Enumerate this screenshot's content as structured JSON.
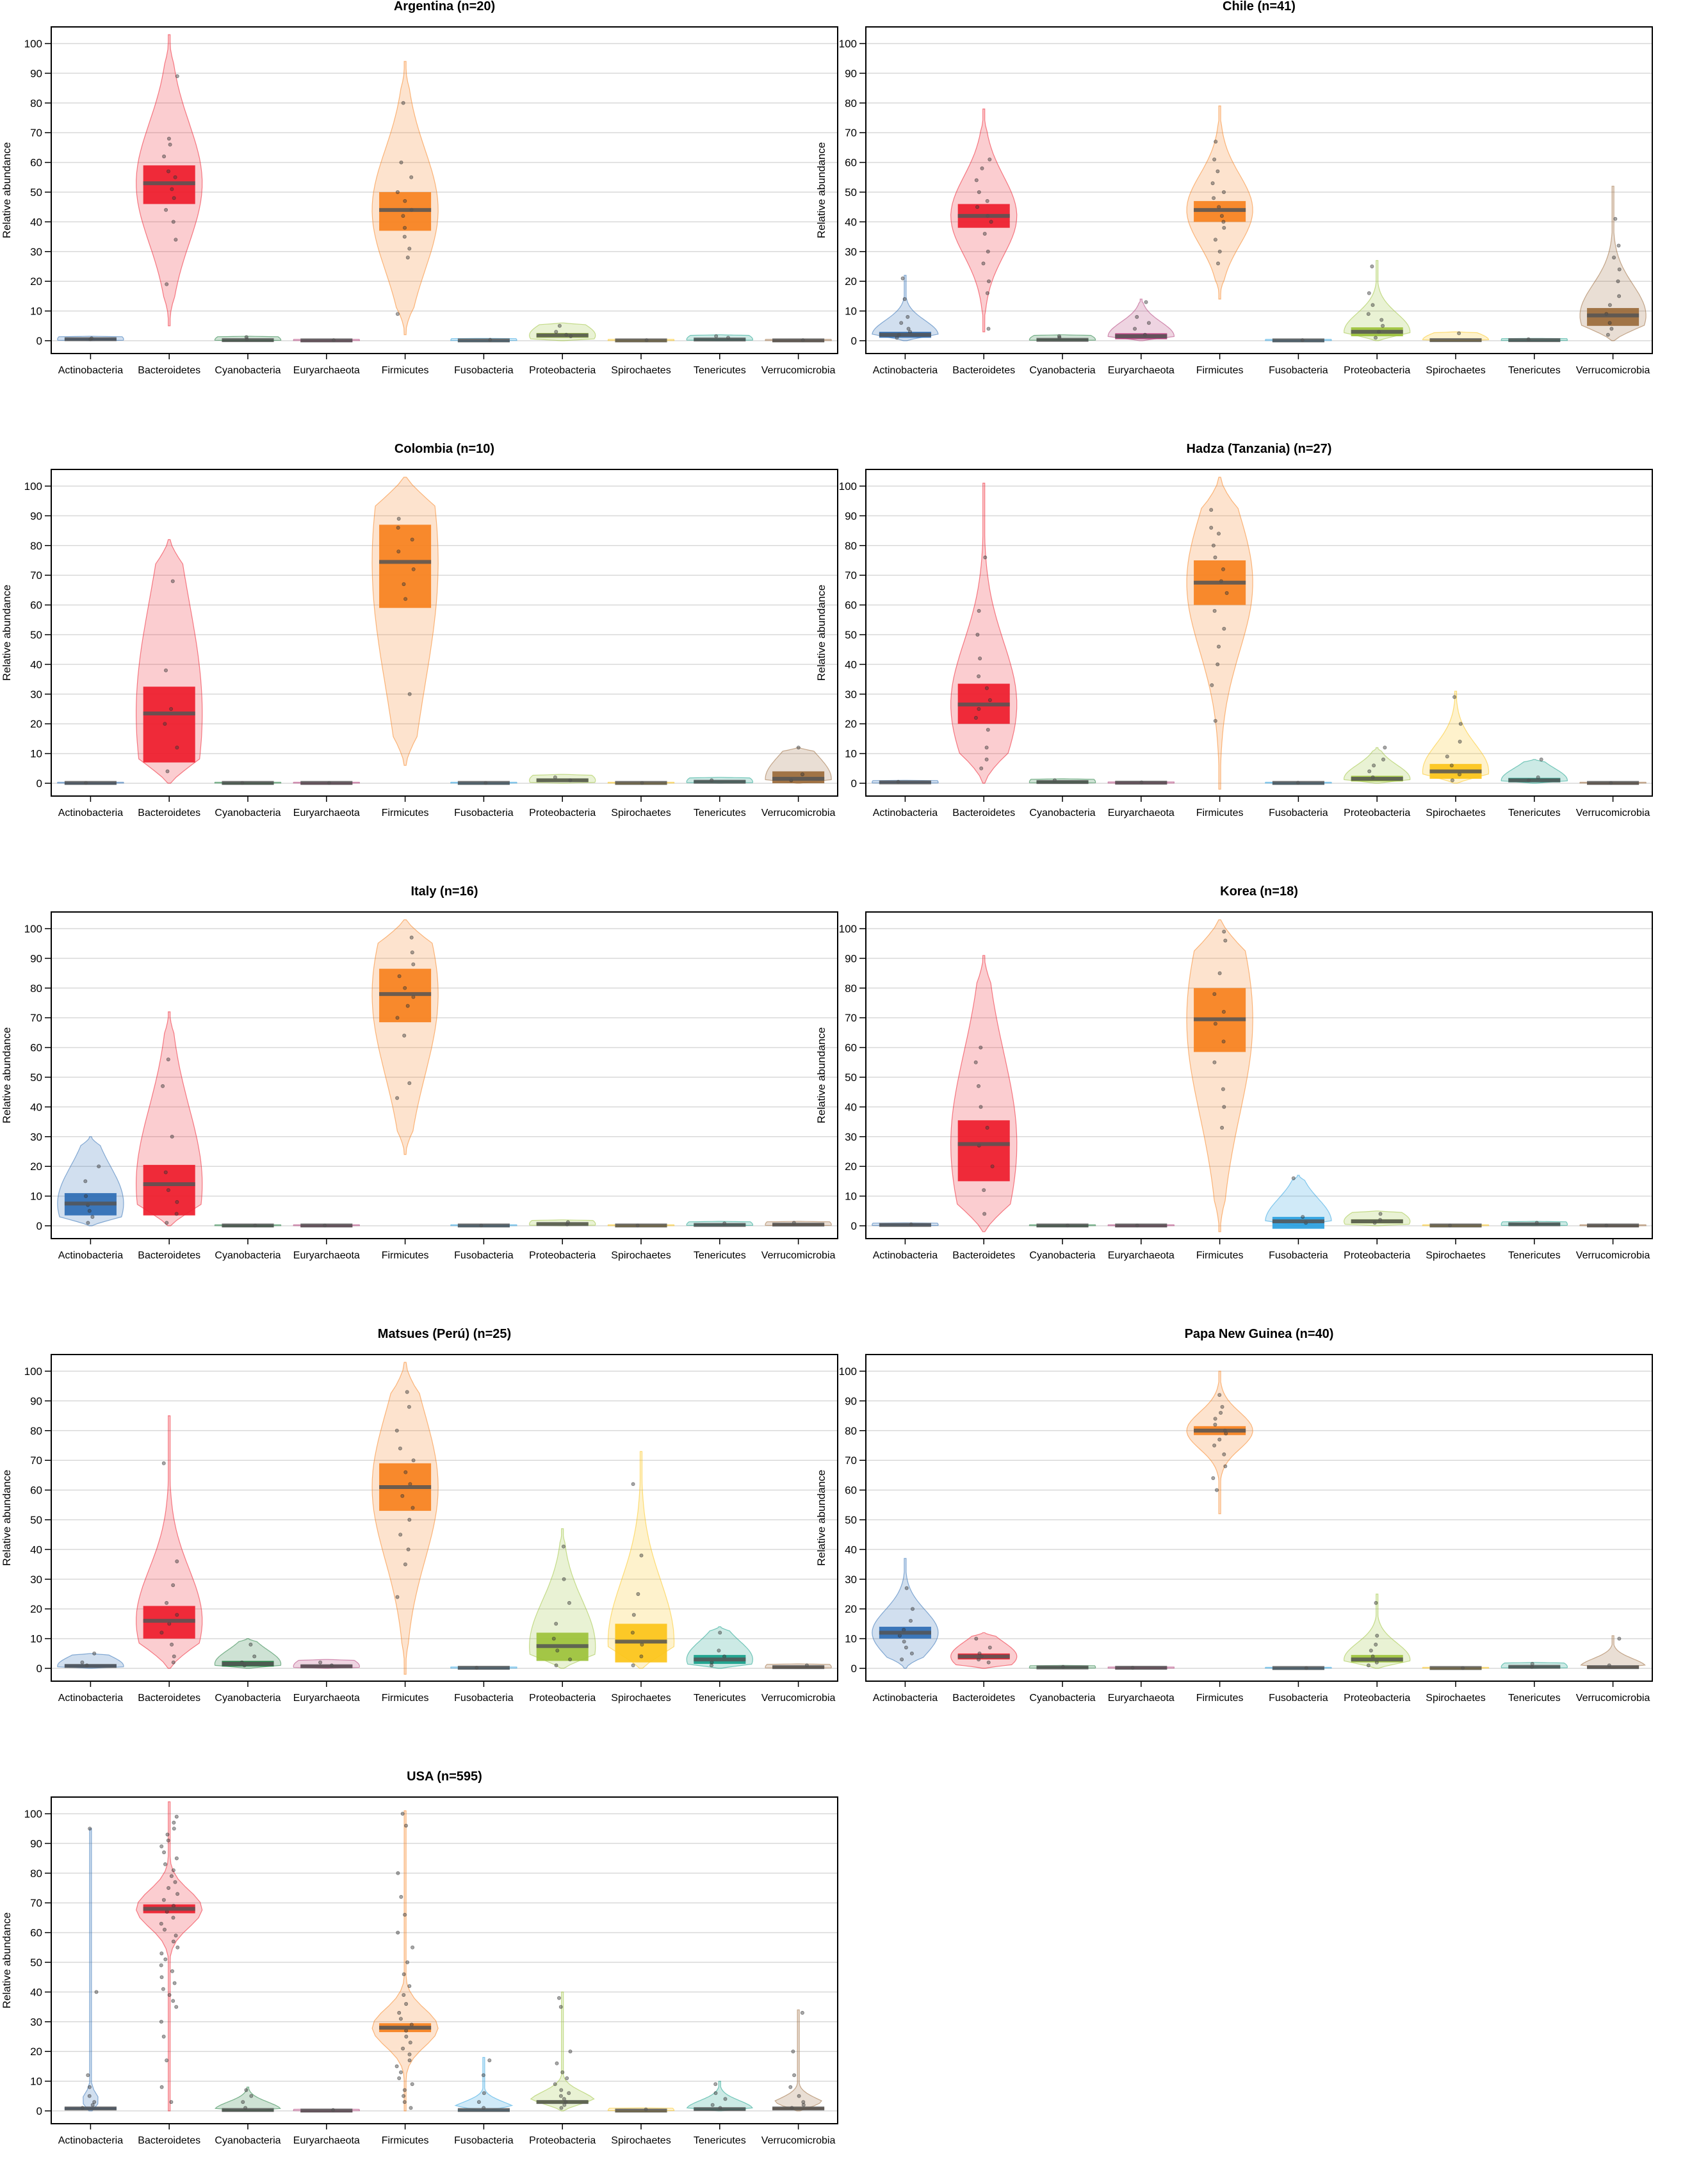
{
  "figure": {
    "ylabel": "Relative abundance",
    "phyla": [
      "Actinobacteria",
      "Bacteroidetes",
      "Cyanobacteria",
      "Euryarchaeota",
      "Firmicutes",
      "Fusobacteria",
      "Proteobacteria",
      "Spirochaetes",
      "Tenericutes",
      "Verrucomicrobia"
    ],
    "colors": {
      "Actinobacteria": "#2e6db4",
      "Bacteroidetes": "#ee1c2b",
      "Cyanobacteria": "#1e7b3c",
      "Euryarchaeota": "#b03a78",
      "Firmicutes": "#f7811e",
      "Fusobacteria": "#2aa0e0",
      "Proteobacteria": "#9cc23a",
      "Spirochaetes": "#fcc419",
      "Tenericutes": "#16a08a",
      "Verrucomicrobia": "#9a6a3a"
    },
    "ylim": [
      0,
      100
    ],
    "yticks": [
      0,
      10,
      20,
      30,
      40,
      50,
      60,
      70,
      80,
      90,
      100
    ]
  },
  "chart_data": [
    {
      "type": "pirate",
      "title": "Argentina (n=20)",
      "ylabel": "Relative abundance",
      "ylim": [
        0,
        100
      ],
      "categories": [
        "Actinobacteria",
        "Bacteroidetes",
        "Cyanobacteria",
        "Euryarchaeota",
        "Firmicutes",
        "Fusobacteria",
        "Proteobacteria",
        "Spirochaetes",
        "Tenericutes",
        "Verrucomicrobia"
      ],
      "means": [
        0.5,
        53,
        0.2,
        0.1,
        44,
        0.1,
        1.8,
        0.1,
        0.4,
        0.1
      ],
      "box_low": [
        0.2,
        46,
        0.1,
        0.05,
        37,
        0.05,
        1.0,
        0.05,
        0.1,
        0.05
      ],
      "box_high": [
        0.8,
        59,
        0.4,
        0.2,
        50,
        0.2,
        2.6,
        0.2,
        0.7,
        0.2
      ],
      "violin_min": [
        0,
        5,
        0,
        0,
        2,
        0,
        0,
        0,
        0,
        0
      ],
      "violin_max": [
        1.5,
        103,
        1.5,
        0.5,
        94,
        0.8,
        6,
        0.5,
        2,
        0.5
      ],
      "points": [
        [
          0.5,
          0.8
        ],
        [
          89,
          68,
          66,
          62,
          57,
          55,
          51,
          48,
          44,
          40,
          34,
          19
        ],
        [
          0.5,
          1.2
        ],
        [
          0.2
        ],
        [
          80,
          60,
          55,
          50,
          47,
          44,
          42,
          38,
          35,
          31,
          28,
          9
        ],
        [
          0.3
        ],
        [
          5,
          3,
          2,
          1.5
        ],
        [
          0.2
        ],
        [
          1.5,
          1
        ],
        [
          0.2
        ]
      ]
    },
    {
      "type": "pirate",
      "title": "Chile (n=41)",
      "ylabel": "Relative abundance",
      "ylim": [
        0,
        100
      ],
      "categories": [
        "Actinobacteria",
        "Bacteroidetes",
        "Cyanobacteria",
        "Euryarchaeota",
        "Firmicutes",
        "Fusobacteria",
        "Proteobacteria",
        "Spirochaetes",
        "Tenericutes",
        "Verrucomicrobia"
      ],
      "means": [
        2,
        42,
        0.3,
        1.5,
        44,
        0.1,
        3,
        0.2,
        0.2,
        8.5
      ],
      "box_low": [
        1,
        38,
        0.1,
        0.5,
        40,
        0.05,
        1.5,
        0.05,
        0.05,
        5
      ],
      "box_high": [
        3,
        46,
        0.6,
        2.5,
        47,
        0.2,
        4.5,
        0.4,
        0.4,
        11
      ],
      "violin_min": [
        0,
        3,
        0,
        0,
        14,
        0,
        0,
        0,
        0,
        0
      ],
      "violin_max": [
        22,
        78,
        2,
        14,
        79,
        0.5,
        27,
        3,
        0.8,
        52
      ],
      "points": [
        [
          21,
          14,
          8,
          6,
          4,
          3,
          2,
          1
        ],
        [
          61,
          58,
          54,
          50,
          47,
          45,
          42,
          40,
          36,
          30,
          26,
          20,
          16,
          4
        ],
        [
          1.5,
          1
        ],
        [
          13,
          8,
          6,
          4,
          2
        ],
        [
          67,
          61,
          57,
          53,
          50,
          48,
          45,
          42,
          40,
          38,
          34,
          30,
          26
        ],
        [
          0.2
        ],
        [
          25,
          16,
          12,
          9,
          7,
          5,
          3,
          1
        ],
        [
          2.5
        ],
        [
          0.5
        ],
        [
          41,
          32,
          28,
          24,
          20,
          15,
          12,
          9,
          6,
          4,
          2
        ]
      ]
    },
    {
      "type": "pirate",
      "title": "Colombia (n=10)",
      "ylabel": "Relative abundance",
      "ylim": [
        0,
        100
      ],
      "categories": [
        "Actinobacteria",
        "Bacteroidetes",
        "Cyanobacteria",
        "Euryarchaeota",
        "Firmicutes",
        "Fusobacteria",
        "Proteobacteria",
        "Spirochaetes",
        "Tenericutes",
        "Verrucomicrobia"
      ],
      "means": [
        0.1,
        23.5,
        0.1,
        0.1,
        74.5,
        0.1,
        1,
        0.1,
        0.5,
        1.5
      ],
      "box_low": [
        0.05,
        7,
        0.05,
        0.05,
        59,
        0.05,
        0.5,
        0.05,
        0.2,
        0
      ],
      "box_high": [
        0.2,
        32.5,
        0.2,
        0.2,
        87,
        0.2,
        1.6,
        0.2,
        0.9,
        4
      ],
      "violin_min": [
        0,
        0,
        0,
        0,
        6,
        0,
        0,
        0,
        0,
        0
      ],
      "violin_max": [
        0.4,
        82,
        0.4,
        0.4,
        103,
        0.4,
        3,
        0.4,
        2,
        12
      ],
      "points": [
        [
          0.1
        ],
        [
          68,
          38,
          25,
          20,
          12,
          4
        ],
        [
          0.1
        ],
        [
          0.1
        ],
        [
          89,
          86,
          82,
          78,
          72,
          67,
          62,
          30
        ],
        [
          0.1
        ],
        [
          2,
          1
        ],
        [
          0.1
        ],
        [
          1
        ],
        [
          12,
          3,
          1
        ]
      ]
    },
    {
      "type": "pirate",
      "title": "Hadza (Tanzania) (n=27)",
      "ylabel": "Relative abundance",
      "ylim": [
        0,
        100
      ],
      "categories": [
        "Actinobacteria",
        "Bacteroidetes",
        "Cyanobacteria",
        "Euryarchaeota",
        "Firmicutes",
        "Fusobacteria",
        "Proteobacteria",
        "Spirochaetes",
        "Tenericutes",
        "Verrucomicrobia"
      ],
      "means": [
        0.3,
        26.5,
        0.4,
        0.2,
        67.5,
        0.1,
        1.5,
        4,
        1,
        0.1
      ],
      "box_low": [
        0.1,
        20,
        0.1,
        0.05,
        60,
        0.05,
        0.6,
        1.5,
        0.3,
        0.05
      ],
      "box_high": [
        0.6,
        33.5,
        0.8,
        0.4,
        75,
        0.2,
        2.5,
        6.5,
        1.8,
        0.2
      ],
      "violin_min": [
        0,
        0,
        0,
        0,
        -2,
        0,
        0,
        0,
        0,
        0
      ],
      "violin_max": [
        1,
        101,
        1.5,
        0.5,
        103,
        0.4,
        12,
        31,
        8,
        0.4
      ],
      "points": [
        [
          0.5
        ],
        [
          76,
          58,
          50,
          42,
          36,
          32,
          28,
          25,
          22,
          18,
          12,
          8,
          5
        ],
        [
          1
        ],
        [
          0.3
        ],
        [
          92,
          86,
          84,
          80,
          76,
          72,
          68,
          64,
          58,
          52,
          46,
          40,
          33,
          21
        ],
        [
          0.2
        ],
        [
          12,
          8,
          6,
          4,
          2
        ],
        [
          29,
          20,
          14,
          9,
          6,
          3,
          1
        ],
        [
          8,
          2,
          1
        ],
        [
          0.1
        ]
      ]
    },
    {
      "type": "pirate",
      "title": "Italy (n=16)",
      "ylabel": "Relative abundance",
      "ylim": [
        0,
        100
      ],
      "categories": [
        "Actinobacteria",
        "Bacteroidetes",
        "Cyanobacteria",
        "Euryarchaeota",
        "Firmicutes",
        "Fusobacteria",
        "Proteobacteria",
        "Spirochaetes",
        "Tenericutes",
        "Verrucomicrobia"
      ],
      "means": [
        7.5,
        14,
        0.1,
        0.1,
        78,
        0.1,
        0.6,
        0.1,
        0.3,
        0.4
      ],
      "box_low": [
        3.5,
        3.5,
        0.05,
        0.05,
        68.5,
        0.05,
        0.3,
        0.05,
        0.1,
        0.1
      ],
      "box_high": [
        11,
        20.5,
        0.2,
        0.2,
        86.5,
        0.2,
        1,
        0.2,
        0.6,
        0.7
      ],
      "violin_min": [
        0,
        0,
        0,
        0,
        24,
        0,
        0,
        0,
        0,
        0
      ],
      "violin_max": [
        30,
        72,
        0.4,
        0.4,
        103,
        0.4,
        2,
        0.4,
        1.5,
        1.5
      ],
      "points": [
        [
          20,
          15,
          10,
          7,
          5,
          3,
          1
        ],
        [
          56,
          47,
          30,
          18,
          12,
          8,
          4,
          1
        ],
        [
          0.1
        ],
        [
          0.1
        ],
        [
          97,
          92,
          88,
          84,
          80,
          77,
          74,
          70,
          64,
          48,
          43
        ],
        [
          0.1
        ],
        [
          1.2,
          0.5
        ],
        [
          0.1
        ],
        [
          0.8
        ],
        [
          1
        ]
      ]
    },
    {
      "type": "pirate",
      "title": "Korea (n=18)",
      "ylabel": "Relative abundance",
      "ylim": [
        0,
        100
      ],
      "categories": [
        "Actinobacteria",
        "Bacteroidetes",
        "Cyanobacteria",
        "Euryarchaeota",
        "Firmicutes",
        "Fusobacteria",
        "Proteobacteria",
        "Spirochaetes",
        "Tenericutes",
        "Verrucomicrobia"
      ],
      "means": [
        0.3,
        27.5,
        0.1,
        0.1,
        69.5,
        1.5,
        1.5,
        0.1,
        0.5,
        0.1
      ],
      "box_low": [
        0.1,
        15,
        0.05,
        0.05,
        58.5,
        -1,
        0.8,
        0.05,
        0.2,
        0.05
      ],
      "box_high": [
        0.6,
        35.5,
        0.2,
        0.2,
        80,
        3,
        2.2,
        0.2,
        0.9,
        0.2
      ],
      "violin_min": [
        0,
        -2,
        0,
        0,
        -2,
        0,
        0,
        0,
        0,
        0
      ],
      "violin_max": [
        1,
        91,
        0.4,
        0.4,
        103,
        17,
        5,
        0.4,
        1.5,
        0.4
      ],
      "points": [
        [
          0.5
        ],
        [
          60,
          55,
          47,
          40,
          33,
          27,
          20,
          12,
          4
        ],
        [
          0.1
        ],
        [
          0.1
        ],
        [
          99,
          96,
          85,
          78,
          72,
          68,
          62,
          55,
          46,
          40,
          33
        ],
        [
          16,
          3,
          1
        ],
        [
          4,
          2,
          1
        ],
        [
          0.1
        ],
        [
          1
        ],
        [
          0.1
        ]
      ]
    },
    {
      "type": "pirate",
      "title": "Matsues (Perú) (n=25)",
      "ylabel": "Relative abundance",
      "ylim": [
        0,
        100
      ],
      "categories": [
        "Actinobacteria",
        "Bacteroidetes",
        "Cyanobacteria",
        "Euryarchaeota",
        "Firmicutes",
        "Fusobacteria",
        "Proteobacteria",
        "Spirochaetes",
        "Tenericutes",
        "Verrucomicrobia"
      ],
      "means": [
        0.8,
        16,
        1.5,
        0.7,
        61,
        0.2,
        7.5,
        9,
        3,
        0.4
      ],
      "box_low": [
        0.3,
        10,
        0.6,
        0.2,
        53,
        0.05,
        2.5,
        2,
        1.5,
        0.1
      ],
      "box_high": [
        1.3,
        21,
        2.5,
        1.2,
        69,
        0.3,
        12,
        15,
        4.5,
        0.7
      ],
      "violin_min": [
        0,
        0,
        0,
        0,
        -2,
        0,
        0,
        0,
        0,
        0
      ],
      "violin_max": [
        5,
        85,
        10,
        3,
        103,
        0.5,
        47,
        73,
        14,
        1.5
      ],
      "points": [
        [
          5,
          2,
          1
        ],
        [
          69,
          36,
          28,
          22,
          18,
          15,
          12,
          8,
          4,
          2
        ],
        [
          8,
          4,
          2,
          1
        ],
        [
          2,
          1
        ],
        [
          93,
          88,
          80,
          74,
          70,
          66,
          62,
          58,
          54,
          50,
          45,
          40,
          35,
          24
        ],
        [
          0.2
        ],
        [
          41,
          30,
          22,
          15,
          10,
          6,
          3,
          1
        ],
        [
          62,
          38,
          25,
          18,
          12,
          8,
          4,
          1
        ],
        [
          12,
          6,
          4,
          2,
          1
        ],
        [
          1
        ]
      ]
    },
    {
      "type": "pirate",
      "title": "Papa New Guinea (n=40)",
      "ylabel": "Relative abundance",
      "ylim": [
        0,
        100
      ],
      "categories": [
        "Actinobacteria",
        "Bacteroidetes",
        "Cyanobacteria",
        "Euryarchaeota",
        "Firmicutes",
        "Fusobacteria",
        "Proteobacteria",
        "Spirochaetes",
        "Tenericutes",
        "Verrucomicrobia"
      ],
      "means": [
        12,
        4,
        0.3,
        0.2,
        80,
        0.1,
        3,
        0.1,
        0.5,
        0.4
      ],
      "box_low": [
        10,
        3,
        0.1,
        0.05,
        78.5,
        0.05,
        2,
        0.05,
        0.2,
        0.1
      ],
      "box_high": [
        14,
        5,
        0.6,
        0.4,
        81.5,
        0.2,
        4.5,
        0.2,
        0.8,
        0.7
      ],
      "violin_min": [
        0,
        0,
        0,
        0,
        52,
        0,
        0,
        0,
        0,
        0
      ],
      "violin_max": [
        37,
        12,
        1,
        0.5,
        100,
        0.4,
        25,
        0.4,
        2,
        11
      ],
      "points": [
        [
          27,
          20,
          16,
          13,
          11,
          9,
          7,
          5,
          3
        ],
        [
          10,
          7,
          5,
          4,
          3,
          2
        ],
        [
          0.5
        ],
        [
          0.2
        ],
        [
          92,
          88,
          86,
          84,
          82,
          80,
          79,
          77,
          75,
          72,
          68,
          64,
          60
        ],
        [
          0.1
        ],
        [
          22,
          11,
          8,
          6,
          4,
          2,
          1
        ],
        [
          0.1
        ],
        [
          1.5,
          0.5
        ],
        [
          10,
          1
        ]
      ]
    },
    {
      "type": "pirate",
      "title": "USA (n=595)",
      "ylabel": "Relative abundance",
      "ylim": [
        0,
        100
      ],
      "categories": [
        "Actinobacteria",
        "Bacteroidetes",
        "Cyanobacteria",
        "Euryarchaeota",
        "Firmicutes",
        "Fusobacteria",
        "Proteobacteria",
        "Spirochaetes",
        "Tenericutes",
        "Verrucomicrobia"
      ],
      "means": [
        0.8,
        68,
        0.3,
        0.1,
        28,
        0.3,
        3,
        0.1,
        0.6,
        0.8
      ],
      "box_low": [
        0.4,
        66.5,
        0.1,
        0.05,
        26.5,
        0.1,
        2.5,
        0.05,
        0.3,
        0.4
      ],
      "box_high": [
        1.2,
        69.5,
        0.5,
        0.2,
        29.5,
        0.5,
        3.5,
        0.2,
        0.9,
        1.2
      ],
      "violin_min": [
        0,
        0,
        0,
        0,
        0,
        0,
        0,
        0,
        0,
        0
      ],
      "violin_max": [
        95,
        104,
        8,
        0.6,
        101,
        18,
        40,
        1,
        10,
        34
      ],
      "points": [
        [
          95,
          40,
          12,
          8,
          5,
          3,
          2,
          1
        ],
        [
          99,
          97,
          95,
          93,
          91,
          89,
          87,
          85,
          83,
          81,
          79,
          77,
          75,
          73,
          71,
          69,
          67,
          65,
          63,
          61,
          59,
          57,
          55,
          53,
          51,
          49,
          47,
          45,
          43,
          41,
          39,
          37,
          35,
          30,
          25,
          17,
          8,
          3
        ],
        [
          7,
          5,
          3,
          1
        ],
        [
          0.3
        ],
        [
          100,
          96,
          80,
          72,
          66,
          60,
          55,
          50,
          46,
          42,
          39,
          36,
          33,
          31,
          29,
          27,
          25,
          23,
          21,
          19,
          17,
          15,
          13,
          11,
          9,
          7,
          5,
          3,
          1
        ],
        [
          17,
          12,
          6,
          3,
          1
        ],
        [
          38,
          35,
          20,
          16,
          13,
          11,
          9,
          7,
          6,
          5,
          4,
          3,
          2,
          1
        ],
        [
          0.5
        ],
        [
          9,
          6,
          4,
          2,
          1
        ],
        [
          33,
          20,
          12,
          8,
          5,
          3,
          2,
          1
        ]
      ]
    }
  ]
}
